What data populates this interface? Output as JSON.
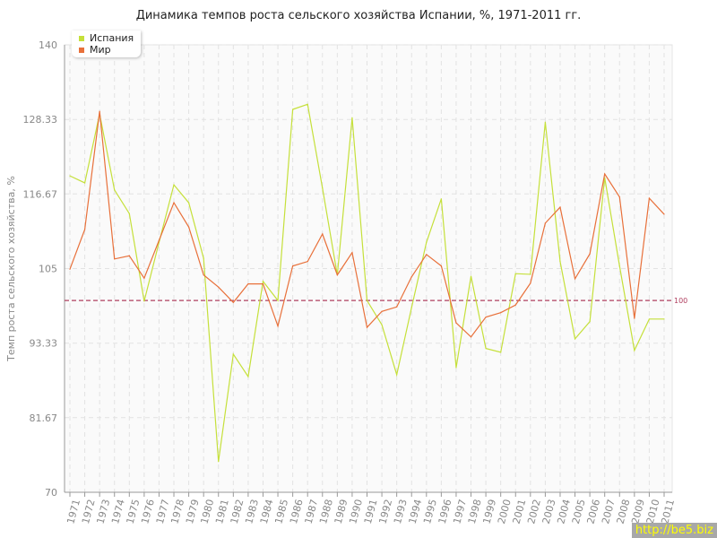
{
  "chart_data": {
    "type": "line",
    "title": "Динамика темпов роста сельского хозяйства Испании, %, 1971-2011 гг.",
    "xlabel": "",
    "ylabel": "Темп роста сельского хозяйства, %",
    "ylim": [
      70,
      140
    ],
    "yticks": [
      "70",
      "81.67",
      "93.33",
      "105",
      "116.67",
      "128.33",
      "140"
    ],
    "grid": true,
    "legend_position": "top-left",
    "reference_line": {
      "value": 100,
      "label": "100",
      "color": "#b04060"
    },
    "x": [
      1971,
      1972,
      1973,
      1974,
      1975,
      1976,
      1977,
      1978,
      1979,
      1980,
      1981,
      1982,
      1983,
      1984,
      1985,
      1986,
      1987,
      1988,
      1989,
      1990,
      1991,
      1992,
      1993,
      1994,
      1995,
      1996,
      1997,
      1998,
      1999,
      2000,
      2001,
      2002,
      2003,
      2004,
      2005,
      2006,
      2007,
      2008,
      2009,
      2010,
      2011
    ],
    "series": [
      {
        "name": "Испания",
        "color": "#c5e03a",
        "values": [
          119.5,
          118.4,
          129.2,
          117.3,
          113.6,
          99.9,
          109.1,
          118.1,
          115.3,
          106.6,
          74.8,
          91.6,
          88.1,
          103.0,
          100.0,
          129.9,
          130.7,
          117.6,
          104.0,
          128.6,
          100.0,
          96.2,
          88.4,
          98.9,
          109.1,
          115.9,
          89.5,
          103.8,
          92.5,
          91.9,
          104.2,
          104.1,
          127.9,
          106.1,
          94.0,
          96.7,
          119.2,
          105.4,
          92.2,
          97.1,
          97.1
        ]
      },
      {
        "name": "Мир",
        "color": "#e8703a",
        "values": [
          104.9,
          111.1,
          129.6,
          106.5,
          107.0,
          103.5,
          109.4,
          115.3,
          111.5,
          104.0,
          102.1,
          99.7,
          102.6,
          102.6,
          96.0,
          105.4,
          106.1,
          110.4,
          104.0,
          107.5,
          95.8,
          98.3,
          99.0,
          103.7,
          107.2,
          105.4,
          96.5,
          94.3,
          97.4,
          98.1,
          99.3,
          102.7,
          112.1,
          114.6,
          103.4,
          107.3,
          119.8,
          116.2,
          97.2,
          116.0,
          113.5
        ]
      }
    ]
  },
  "watermark": "http://be5.biz"
}
